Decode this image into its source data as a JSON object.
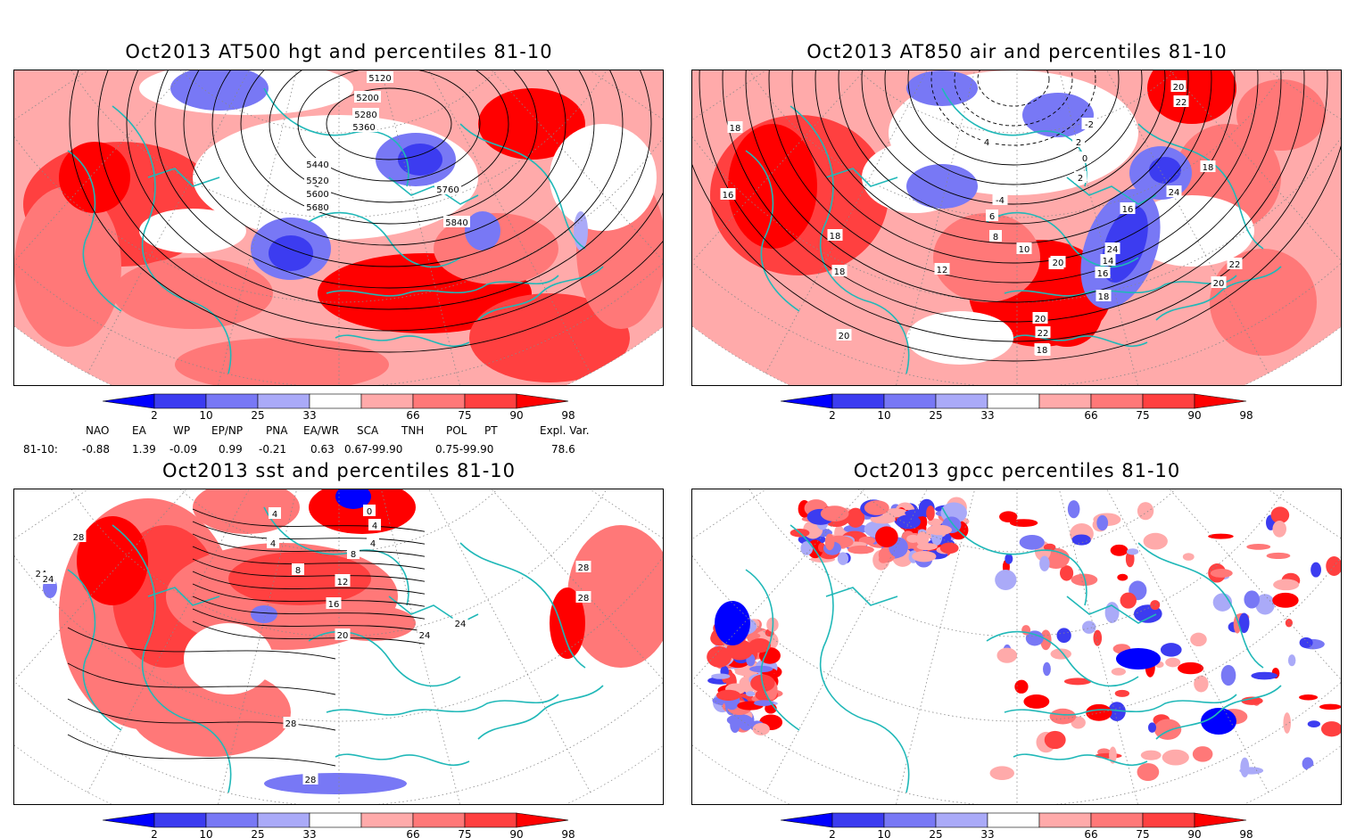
{
  "panels": [
    {
      "id": "tl",
      "title": "Oct2013 AT500 hgt and percentiles 81-10",
      "contour_labels": [
        "5120",
        "5200",
        "5280",
        "5360",
        "5440",
        "5520",
        "5600",
        "5680",
        "5760",
        "5840"
      ]
    },
    {
      "id": "tr",
      "title": "Oct2013 AT850 air and percentiles 81-10",
      "contour_labels": [
        "20",
        "22",
        "18",
        "16",
        "18",
        "18",
        "-2",
        "2",
        "0",
        "4",
        "2",
        "-4",
        "6",
        "8",
        "10",
        "12",
        "14",
        "16",
        "24",
        "14",
        "16",
        "18",
        "20",
        "22",
        "22",
        "20",
        "18",
        "24",
        "22",
        "20",
        "20",
        "18"
      ]
    },
    {
      "id": "bl",
      "title": "Oct2013 sst and percentiles 81-10",
      "contour_labels": [
        "28",
        "24",
        "4",
        "0",
        "4",
        "4",
        "8",
        "4",
        "8",
        "12",
        "12",
        "16",
        "16",
        "20",
        "24",
        "24",
        "28",
        "28",
        "24",
        "28",
        "28",
        "20",
        "16"
      ]
    },
    {
      "id": "br",
      "title": "Oct2013 gpcc percentiles 81-10",
      "contour_labels": []
    }
  ],
  "colorbar": {
    "labels": [
      "2",
      "10",
      "25",
      "33",
      "66",
      "75",
      "90",
      "98"
    ],
    "colors": {
      "blue_strong": "#0000ff",
      "blue_mid": "#3c3cf0",
      "blue_light": "#7878f5",
      "blue_pale": "#aaaaf8",
      "red_pale": "#ffaaaa",
      "red_light": "#ff7878",
      "red_mid": "#ff4040",
      "red_strong": "#ff0000"
    }
  },
  "indices": {
    "headers": [
      "NAO",
      "EA",
      "WP",
      "EP/NP",
      "PNA",
      "EA/WR",
      "SCA",
      "TNH",
      "POL",
      "PT",
      "Expl. Var."
    ],
    "row_label": "81-10:",
    "values": [
      "-0.88",
      "1.39",
      "-0.09",
      "0.99",
      "-0.21",
      "0.63",
      "0.67-99.90",
      "0.75-99.90",
      "78.6"
    ]
  },
  "colors": {
    "coast": "#20b8b8",
    "contour": "#000000",
    "frame": "#000000"
  }
}
